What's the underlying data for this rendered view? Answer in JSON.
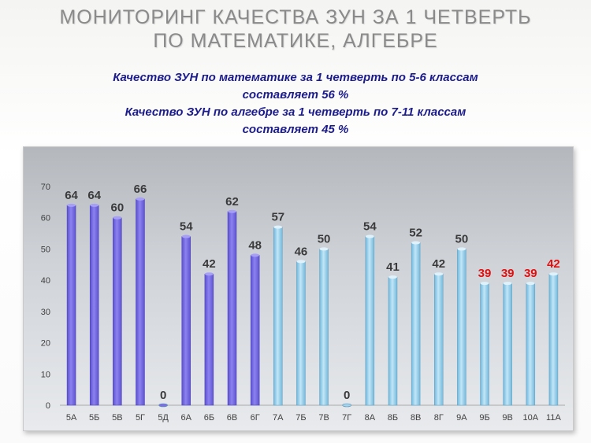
{
  "header": {
    "title_line1": "МОНИТОРИНГ  КАЧЕСТВА ЗУН ЗА 1  ЧЕТВЕРТЬ",
    "title_line2": "ПО  МАТЕМАТИКЕ, АЛГЕБРЕ",
    "sub_line1": "Качество ЗУН по математике  за 1 четверть  по 5-6 классам",
    "sub_line2": "составляет  56 %",
    "sub_line3": "Качество ЗУН по алгебре  за 1 четверть  по 7-11 классам",
    "sub_line4": "составляет  45 %"
  },
  "colors": {
    "math_bar": "#7b6fe6",
    "algebra_bar": "#9fd3ee",
    "label_dark": "#3a3a3a",
    "label_red": "#e01010"
  },
  "chart_data": {
    "type": "bar",
    "categories": [
      "5А",
      "5Б",
      "5В",
      "5Г",
      "5Д",
      "6А",
      "6Б",
      "6В",
      "6Г",
      "7А",
      "7Б",
      "7В",
      "7Г",
      "8А",
      "8Б",
      "8В",
      "8Г",
      "9А",
      "9Б",
      "9В",
      "10А",
      "11А"
    ],
    "values": [
      64,
      64,
      60,
      66,
      0,
      54,
      42,
      62,
      48,
      57,
      46,
      50,
      0,
      54,
      41,
      52,
      42,
      50,
      39,
      39,
      39,
      42
    ],
    "groups": [
      "math",
      "math",
      "math",
      "math",
      "math",
      "math",
      "math",
      "math",
      "math",
      "algebra",
      "algebra",
      "algebra",
      "algebra",
      "algebra",
      "algebra",
      "algebra",
      "algebra",
      "algebra",
      "algebra",
      "algebra",
      "algebra",
      "algebra"
    ],
    "red_labels": [
      false,
      false,
      false,
      false,
      false,
      false,
      false,
      false,
      false,
      false,
      false,
      false,
      false,
      false,
      false,
      false,
      false,
      false,
      true,
      true,
      true,
      true
    ],
    "ylim": [
      0,
      70
    ],
    "yticks": [
      0,
      10,
      20,
      30,
      40,
      50,
      60,
      70
    ],
    "grid": false
  }
}
